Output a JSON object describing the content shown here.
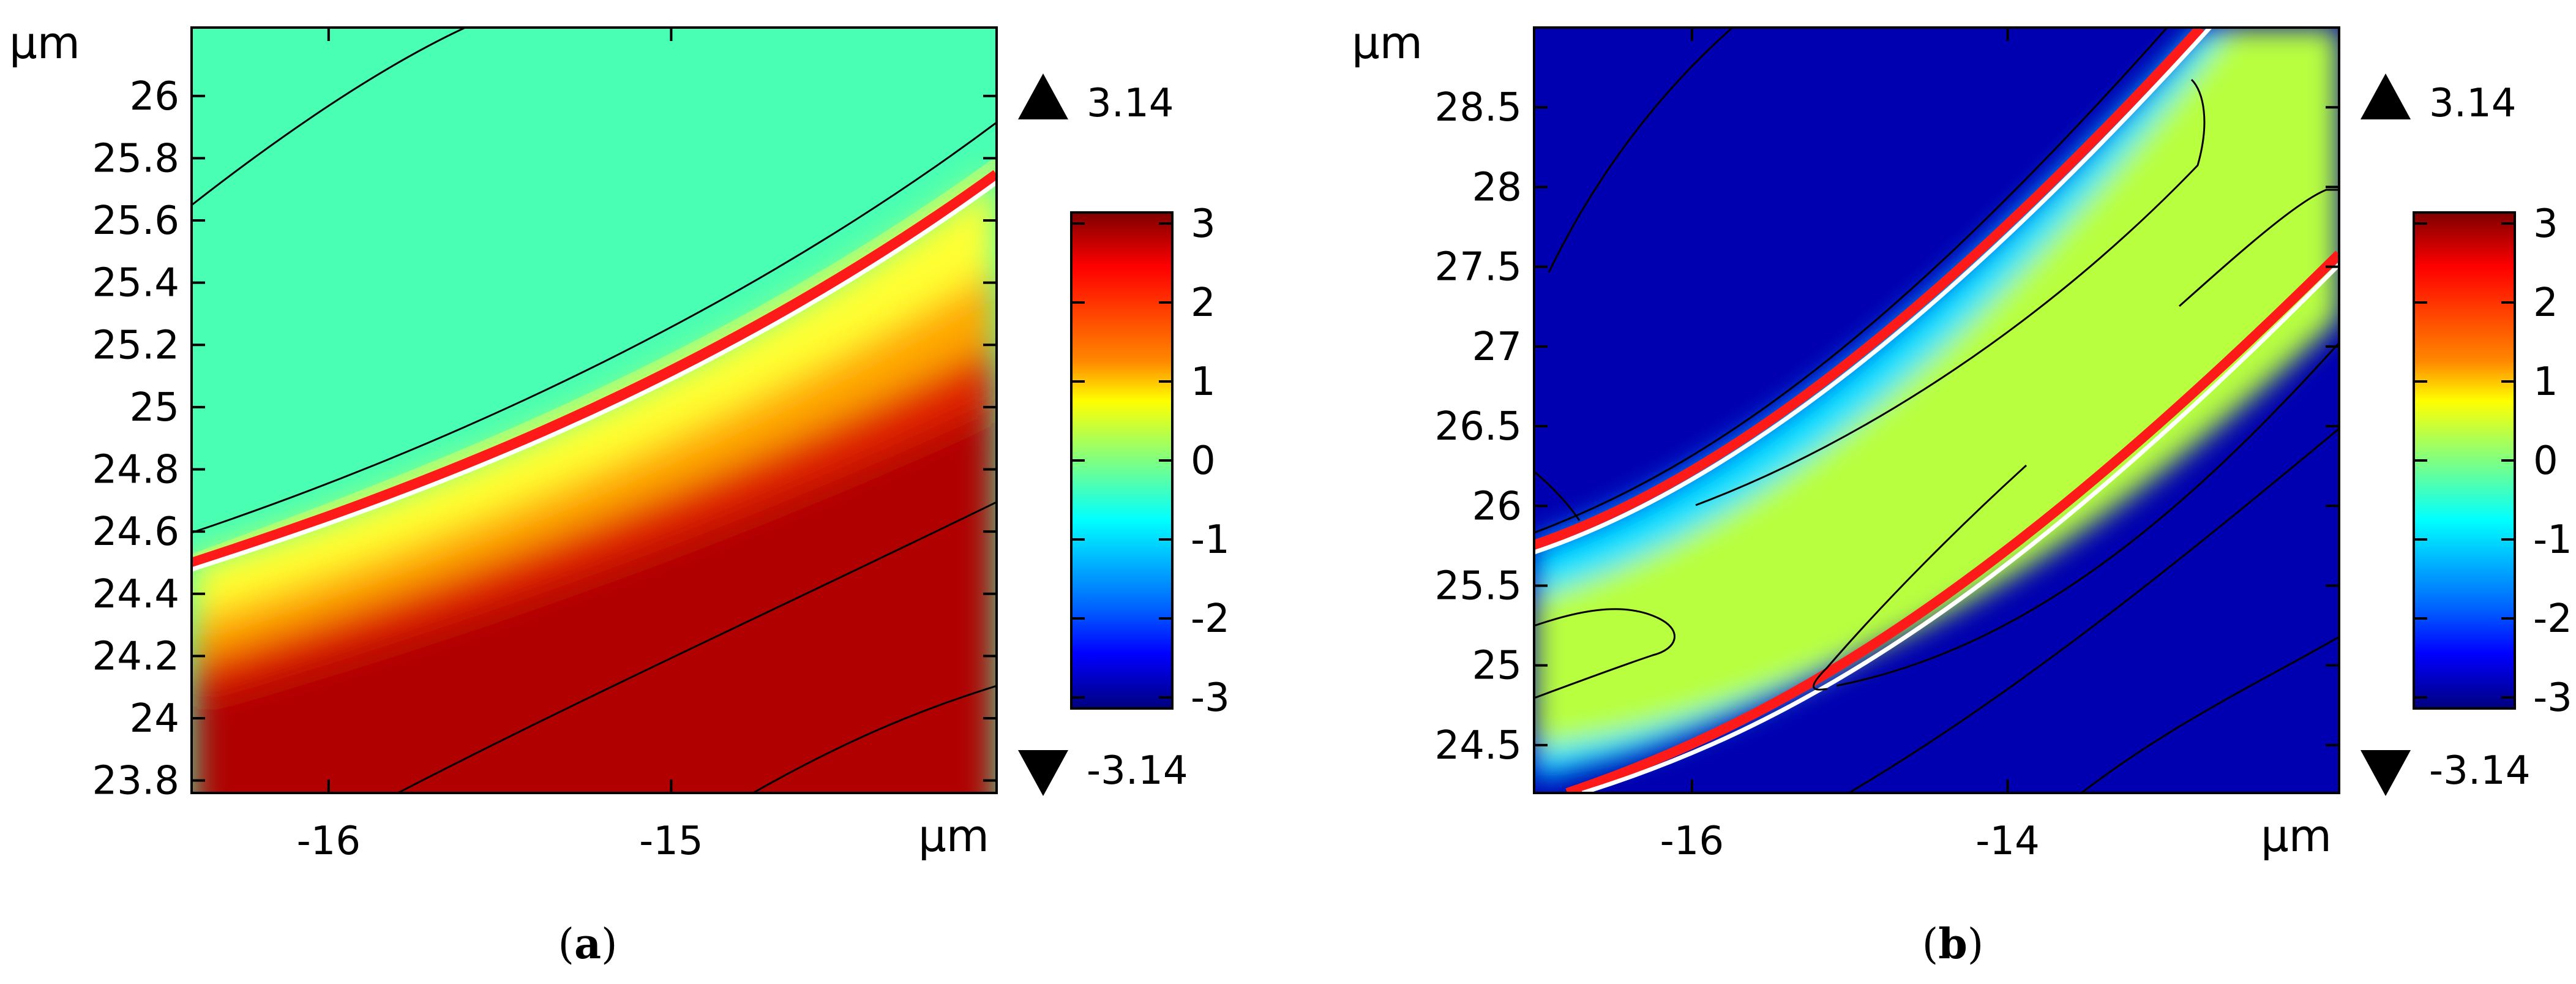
{
  "chart_data": [
    {
      "type": "heatmap",
      "panel_label": "a",
      "x_unit": "μm",
      "y_unit": "μm",
      "xlim": [
        -16.4,
        -14.05
      ],
      "ylim": [
        23.76,
        26.22
      ],
      "x_ticks": [
        -16,
        -15
      ],
      "x_tick_labels": [
        "-16",
        "-15"
      ],
      "y_ticks": [
        23.8,
        24,
        24.2,
        24.4,
        24.6,
        24.8,
        25,
        25.2,
        25.4,
        25.6,
        25.8,
        26
      ],
      "y_tick_labels": [
        "23.8",
        "24",
        "24.2",
        "24.4",
        "24.6",
        "24.8",
        "25",
        "25.2",
        "25.4",
        "25.6",
        "25.8",
        "26"
      ],
      "colorbar": {
        "colormap": "jet",
        "range": [
          -3.14,
          3.14
        ],
        "ticks": [
          3,
          2,
          1,
          0,
          -1,
          -2,
          -3
        ],
        "tick_labels": [
          "3",
          "2",
          "1",
          "0",
          "-1",
          "-2",
          "-3"
        ],
        "max_label": "3.14",
        "min_label": "-3.14"
      },
      "regions": [
        {
          "name": "upper",
          "value": 0.45,
          "color": "#48ffb4"
        },
        {
          "name": "lower",
          "value": 3.14,
          "color": "#b00000"
        }
      ]
    },
    {
      "type": "heatmap",
      "panel_label": "b",
      "x_unit": "μm",
      "y_unit": "μm",
      "xlim": [
        -17.0,
        -11.9
      ],
      "ylim": [
        24.2,
        29.0
      ],
      "x_ticks": [
        -16,
        -14
      ],
      "x_tick_labels": [
        "-16",
        "-14"
      ],
      "y_ticks": [
        24.5,
        25,
        25.5,
        26,
        26.5,
        27,
        27.5,
        28,
        28.5
      ],
      "y_tick_labels": [
        "24.5",
        "25",
        "25.5",
        "26",
        "26.5",
        "27",
        "27.5",
        "28",
        "28.5"
      ],
      "colorbar": {
        "colormap": "jet",
        "range": [
          -3.14,
          3.14
        ],
        "ticks": [
          3,
          2,
          1,
          0,
          -1,
          -2,
          -3
        ],
        "tick_labels": [
          "3",
          "2",
          "1",
          "0",
          "-1",
          "-2",
          "-3"
        ],
        "max_label": "3.14",
        "min_label": "-3.14"
      },
      "regions": [
        {
          "name": "band",
          "value": 0.55,
          "color": "#b8ff40"
        },
        {
          "name": "outside",
          "value": -3.14,
          "color": "#0000b0"
        }
      ]
    }
  ],
  "colors": {
    "jet_dark_red": "#7f0000",
    "jet_red": "#ff0000",
    "jet_orange": "#ff8800",
    "jet_yellow": "#ffff00",
    "jet_green": "#80ff80",
    "jet_cyan": "#00ffff",
    "jet_blue": "#0000ff",
    "jet_dark_blue": "#00007f",
    "panel_a_upper": "#48ffb4",
    "panel_a_lower": "#b00000",
    "panel_b_band": "#b8ff40",
    "panel_b_outside": "#0000b0",
    "interface_red": "#ff1a1a",
    "interface_white": "#ffffff"
  }
}
